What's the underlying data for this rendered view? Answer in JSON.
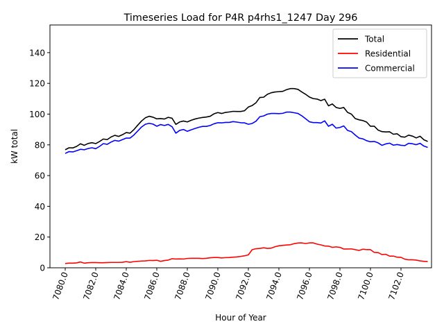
{
  "chart_data": {
    "type": "line",
    "title": "Timeseries Load for P4R p4rhs1_1247  Day 296",
    "xlabel": "Hour of Year",
    "ylabel": "kW total",
    "xlim": [
      7079.0,
      7104.0
    ],
    "ylim": [
      0,
      158
    ],
    "xticks": [
      7080.0,
      7082.0,
      7084.0,
      7086.0,
      7088.0,
      7090.0,
      7092.0,
      7094.0,
      7096.0,
      7098.0,
      7100.0,
      7102.0
    ],
    "xtick_labels": [
      "7080.0",
      "7082.0",
      "7084.0",
      "7086.0",
      "7088.0",
      "7090.0",
      "7092.0",
      "7094.0",
      "7096.0",
      "7098.0",
      "7100.0",
      "7102.0"
    ],
    "yticks": [
      0,
      20,
      40,
      60,
      80,
      100,
      120,
      140
    ],
    "ytick_labels": [
      "0",
      "20",
      "40",
      "60",
      "80",
      "100",
      "120",
      "140"
    ],
    "legend_position": "top-right",
    "x_start": 7080.0,
    "x_step": 0.25,
    "series": [
      {
        "name": "Total",
        "color": "#000000",
        "values": [
          76.8,
          78.1,
          78.0,
          79.0,
          80.7,
          79.7,
          80.9,
          81.4,
          80.8,
          82.2,
          83.8,
          83.4,
          85.1,
          86.2,
          85.5,
          86.6,
          88.0,
          87.6,
          89.9,
          92.8,
          95.5,
          97.6,
          98.6,
          98.0,
          96.9,
          97.1,
          96.8,
          97.9,
          97.3,
          93.3,
          94.9,
          95.5,
          94.9,
          96.0,
          96.8,
          97.4,
          97.8,
          98.1,
          98.6,
          100.2,
          101.0,
          100.4,
          101.1,
          101.4,
          101.8,
          101.7,
          101.7,
          102.2,
          104.6,
          105.6,
          107.4,
          110.8,
          111.0,
          112.9,
          113.9,
          114.4,
          114.6,
          114.8,
          115.9,
          116.6,
          116.6,
          116.1,
          114.4,
          112.9,
          111.1,
          110.1,
          109.8,
          108.8,
          109.7,
          105.4,
          106.6,
          104.3,
          103.7,
          104.3,
          101.1,
          100.0,
          97.1,
          96.3,
          95.8,
          94.8,
          92.1,
          92.1,
          89.6,
          88.6,
          88.4,
          88.5,
          86.9,
          87.2,
          85.3,
          85.0,
          86.3,
          85.7,
          84.5,
          85.6,
          83.3,
          82.2
        ]
      },
      {
        "name": "Residential",
        "color": "#ff0000",
        "values": [
          2.8,
          3.0,
          3.0,
          3.2,
          3.8,
          3.0,
          3.3,
          3.4,
          3.4,
          3.3,
          3.3,
          3.4,
          3.5,
          3.5,
          3.5,
          3.6,
          4.0,
          3.6,
          4.0,
          4.2,
          4.4,
          4.5,
          4.8,
          4.7,
          4.9,
          4.2,
          4.7,
          5.0,
          5.9,
          5.7,
          5.8,
          5.7,
          6.1,
          6.2,
          6.2,
          6.2,
          6.0,
          6.2,
          6.5,
          6.7,
          6.7,
          6.4,
          6.6,
          6.7,
          6.9,
          7.1,
          7.4,
          7.8,
          8.4,
          11.8,
          12.4,
          12.6,
          13.0,
          12.6,
          12.8,
          13.7,
          14.3,
          14.6,
          14.8,
          15.0,
          15.7,
          16.1,
          16.2,
          15.8,
          16.2,
          16.2,
          15.4,
          14.9,
          14.2,
          14.1,
          13.3,
          13.6,
          13.3,
          12.2,
          12.2,
          12.3,
          11.8,
          11.3,
          12.1,
          11.8,
          11.8,
          10.0,
          9.9,
          8.6,
          8.8,
          7.6,
          7.6,
          6.9,
          6.8,
          5.6,
          5.2,
          5.2,
          5.0,
          4.5,
          4.2,
          4.1
        ]
      },
      {
        "name": "Commercial",
        "color": "#0000ff",
        "values": [
          74.4,
          75.6,
          75.4,
          76.2,
          77.1,
          76.8,
          77.6,
          78.1,
          77.5,
          79.0,
          80.8,
          80.3,
          81.8,
          82.9,
          82.4,
          83.4,
          84.4,
          84.4,
          86.4,
          89.0,
          91.6,
          93.4,
          94.0,
          93.5,
          92.1,
          93.2,
          92.6,
          93.3,
          91.8,
          87.6,
          89.4,
          90.0,
          88.8,
          89.8,
          90.6,
          91.4,
          92.0,
          92.0,
          92.6,
          93.7,
          94.4,
          94.3,
          94.6,
          94.6,
          95.1,
          94.8,
          94.4,
          94.3,
          93.4,
          93.9,
          95.4,
          98.3,
          98.8,
          100.0,
          100.4,
          100.4,
          100.3,
          100.5,
          101.3,
          101.3,
          100.9,
          100.4,
          98.9,
          97.0,
          95.0,
          94.5,
          94.5,
          94.2,
          95.6,
          92.1,
          93.4,
          90.9,
          91.3,
          92.3,
          89.4,
          88.6,
          86.4,
          84.4,
          83.9,
          82.7,
          82.0,
          82.2,
          81.3,
          79.7,
          80.6,
          81.1,
          79.8,
          80.2,
          79.7,
          79.5,
          81.0,
          80.7,
          80.1,
          81.0,
          79.2,
          78.3
        ]
      }
    ]
  }
}
